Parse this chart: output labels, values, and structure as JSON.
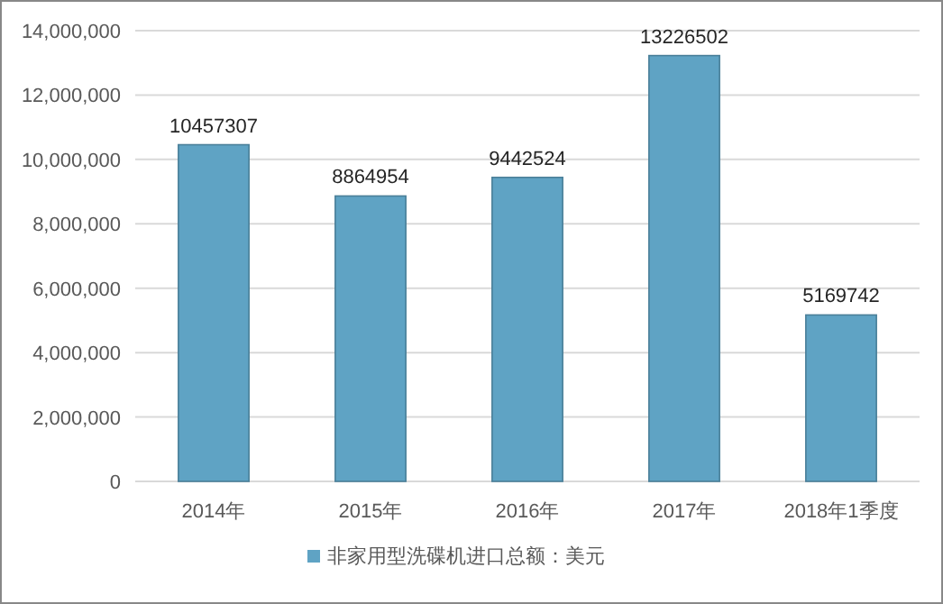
{
  "chart_data": {
    "type": "bar",
    "categories": [
      "2014年",
      "2015年",
      "2016年",
      "2017年",
      "2018年1季度"
    ],
    "series": [
      {
        "name": "非家用型洗碟机进口总额：美元",
        "color": "#5fa3c4",
        "values": [
          10457307,
          8864954,
          9442524,
          13226502,
          5169742
        ]
      }
    ],
    "ylim": [
      0,
      14000000
    ],
    "yticks": [
      0,
      {
        "value": 2000000,
        "label": "2,000,000"
      },
      {
        "value": 4000000,
        "label": "4,000,000"
      },
      {
        "value": 6000000,
        "label": "6,000,000"
      },
      {
        "value": 8000000,
        "label": "8,000,000"
      },
      {
        "value": 10000000,
        "label": "10,000,000"
      },
      {
        "value": 12000000,
        "label": "12,000,000"
      },
      {
        "value": 14000000,
        "label": "14,000,000"
      }
    ],
    "grid": "y",
    "legend": "bottom",
    "data_labels": true
  }
}
